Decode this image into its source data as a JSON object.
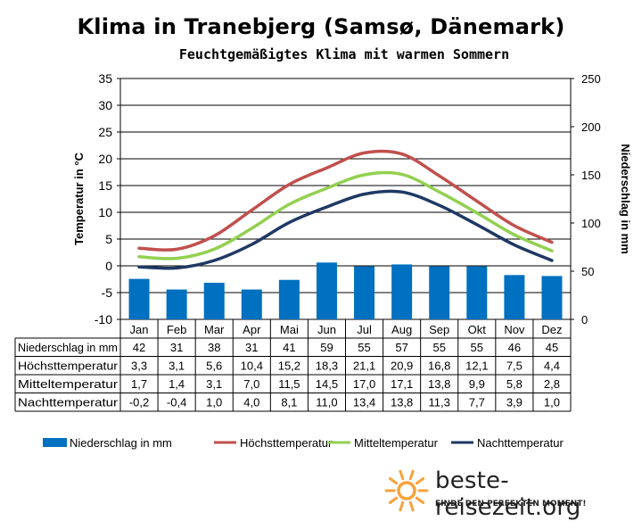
{
  "header": {
    "title": "Klima in Tranebjerg (Samsø, Dänemark)",
    "subtitle": "Feuchtgemäßigtes Klima mit warmen Sommern"
  },
  "chart_data": {
    "type": "bar",
    "title": "Klima in Tranebjerg (Samsø, Dänemark)",
    "subtitle": "Feuchtgemäßigtes Klima mit warmen Sommern",
    "categories": [
      "Jan",
      "Feb",
      "Mar",
      "Apr",
      "Mai",
      "Jun",
      "Jul",
      "Aug",
      "Sep",
      "Okt",
      "Nov",
      "Dez"
    ],
    "y_left": {
      "label": "Temperatur in °C",
      "range": [
        -10,
        35
      ],
      "ticks": [
        -10,
        -5,
        0,
        5,
        10,
        15,
        20,
        25,
        30,
        35
      ]
    },
    "y_right": {
      "label": "Niederschlag in mm",
      "range": [
        0,
        250
      ],
      "ticks": [
        0,
        50,
        100,
        150,
        200,
        250
      ]
    },
    "grid": true,
    "legend_position": "bottom",
    "series": [
      {
        "name": "Niederschlag in mm",
        "kind": "bar",
        "axis": "right",
        "color": "#0070c0",
        "values": [
          42,
          31,
          38,
          31,
          41,
          59,
          55,
          57,
          55,
          55,
          46,
          45
        ],
        "labels": [
          "42",
          "31",
          "38",
          "31",
          "41",
          "59",
          "55",
          "57",
          "55",
          "55",
          "46",
          "45"
        ]
      },
      {
        "name": "Höchsttemperatur",
        "kind": "line",
        "axis": "left",
        "color": "#c0504d",
        "values": [
          3.3,
          3.1,
          5.6,
          10.4,
          15.2,
          18.3,
          21.1,
          20.9,
          16.8,
          12.1,
          7.5,
          4.4
        ],
        "labels": [
          "3,3",
          "3,1",
          "5,6",
          "10,4",
          "15,2",
          "18,3",
          "21,1",
          "20,9",
          "16,8",
          "12,1",
          "7,5",
          "4,4"
        ]
      },
      {
        "name": "Mitteltemperatur",
        "kind": "line",
        "axis": "left",
        "color": "#92d050",
        "values": [
          1.7,
          1.4,
          3.1,
          7.0,
          11.5,
          14.5,
          17.0,
          17.1,
          13.8,
          9.9,
          5.8,
          2.8
        ],
        "labels": [
          "1,7",
          "1,4",
          "3,1",
          "7,0",
          "11,5",
          "14,5",
          "17,0",
          "17,1",
          "13,8",
          "9,9",
          "5,8",
          "2,8"
        ]
      },
      {
        "name": "Nachttemperatur",
        "kind": "line",
        "axis": "left",
        "color": "#1f3864",
        "values": [
          -0.2,
          -0.4,
          1.0,
          4.0,
          8.1,
          11.0,
          13.4,
          13.8,
          11.3,
          7.7,
          3.9,
          1.0
        ],
        "labels": [
          "-0,2",
          "-0,4",
          "1,0",
          "4,0",
          "8,1",
          "11,0",
          "13,4",
          "13,8",
          "11,3",
          "7,7",
          "3,9",
          "1,0"
        ]
      }
    ]
  },
  "brand": {
    "name": "beste-reisezeit.org",
    "tagline": "FINDE DEN PERFEKTEN MOMENT!",
    "sun_color": "#f7a23b"
  }
}
